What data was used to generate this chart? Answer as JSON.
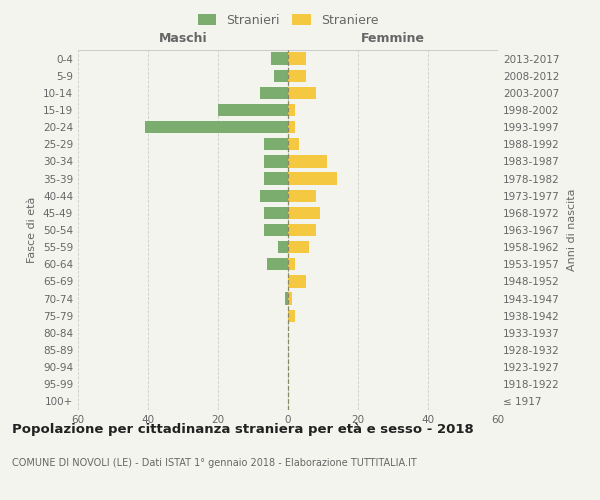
{
  "age_groups": [
    "100+",
    "95-99",
    "90-94",
    "85-89",
    "80-84",
    "75-79",
    "70-74",
    "65-69",
    "60-64",
    "55-59",
    "50-54",
    "45-49",
    "40-44",
    "35-39",
    "30-34",
    "25-29",
    "20-24",
    "15-19",
    "10-14",
    "5-9",
    "0-4"
  ],
  "birth_years": [
    "≤ 1917",
    "1918-1922",
    "1923-1927",
    "1928-1932",
    "1933-1937",
    "1938-1942",
    "1943-1947",
    "1948-1952",
    "1953-1957",
    "1958-1962",
    "1963-1967",
    "1968-1972",
    "1973-1977",
    "1978-1982",
    "1983-1987",
    "1988-1992",
    "1993-1997",
    "1998-2002",
    "2003-2007",
    "2008-2012",
    "2013-2017"
  ],
  "males": [
    0,
    0,
    0,
    0,
    0,
    0,
    1,
    0,
    6,
    3,
    7,
    7,
    8,
    7,
    7,
    7,
    41,
    20,
    8,
    4,
    5
  ],
  "females": [
    0,
    0,
    0,
    0,
    0,
    2,
    1,
    5,
    2,
    6,
    8,
    9,
    8,
    14,
    11,
    3,
    2,
    2,
    8,
    5,
    5
  ],
  "male_color": "#7aad6e",
  "female_color": "#f5c842",
  "title": "Popolazione per cittadinanza straniera per età e sesso - 2018",
  "subtitle": "COMUNE DI NOVOLI (LE) - Dati ISTAT 1° gennaio 2018 - Elaborazione TUTTITALIA.IT",
  "header_left": "Maschi",
  "header_right": "Femmine",
  "ylabel_left": "Fasce di età",
  "ylabel_right": "Anni di nascita",
  "legend_males": "Stranieri",
  "legend_females": "Straniere",
  "xlim": 60,
  "bg_color": "#f4f4ef",
  "grid_color": "#cccccc",
  "text_color": "#666666",
  "title_color": "#222222"
}
